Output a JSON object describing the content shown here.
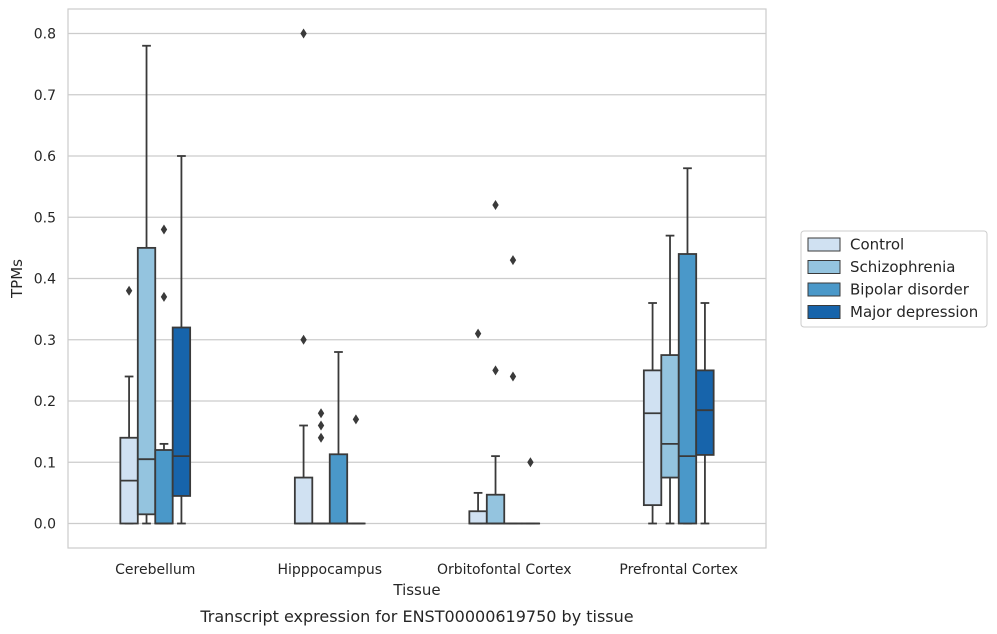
{
  "caption": "Transcript expression for ENST00000619750 by tissue",
  "chart_data": {
    "type": "box",
    "title": "",
    "xlabel": "Tissue",
    "ylabel": "TPMs",
    "ylim": [
      -0.04,
      0.84
    ],
    "yticks": [
      "0.0",
      "0.1",
      "0.2",
      "0.3",
      "0.4",
      "0.5",
      "0.6",
      "0.7",
      "0.8"
    ],
    "ytick_values": [
      0,
      0.1,
      0.2,
      0.3,
      0.4,
      0.5,
      0.6,
      0.7,
      0.8
    ],
    "grid": true,
    "legend_position": "right",
    "categories": [
      "Cerebellum",
      "Hipppocampus",
      "Orbitofontal Cortex",
      "Prefrontal Cortex"
    ],
    "series": [
      {
        "name": "Control",
        "color": "#d0e1f2",
        "boxes": [
          {
            "whislo": 0,
            "q1": 0,
            "med": 0.07,
            "q3": 0.14,
            "whishi": 0.24,
            "fliers": [
              0.38
            ]
          },
          {
            "whislo": 0,
            "q1": 0,
            "med": 0,
            "q3": 0.075,
            "whishi": 0.16,
            "fliers": [
              0.3,
              0.8
            ]
          },
          {
            "whislo": 0,
            "q1": 0,
            "med": 0,
            "q3": 0.02,
            "whishi": 0.05,
            "fliers": [
              0.31
            ]
          },
          {
            "whislo": 0,
            "q1": 0.03,
            "med": 0.18,
            "q3": 0.25,
            "whishi": 0.36,
            "fliers": []
          }
        ]
      },
      {
        "name": "Schizophrenia",
        "color": "#94c4df",
        "boxes": [
          {
            "whislo": 0,
            "q1": 0.015,
            "med": 0.105,
            "q3": 0.45,
            "whishi": 0.78,
            "fliers": []
          },
          {
            "whislo": 0,
            "q1": 0,
            "med": 0,
            "q3": 0,
            "whishi": 0,
            "fliers": [
              0.14,
              0.16,
              0.18
            ]
          },
          {
            "whislo": 0,
            "q1": 0,
            "med": 0,
            "q3": 0.047,
            "whishi": 0.11,
            "fliers": [
              0.25,
              0.52
            ]
          },
          {
            "whislo": 0,
            "q1": 0.075,
            "med": 0.13,
            "q3": 0.275,
            "whishi": 0.47,
            "fliers": []
          }
        ]
      },
      {
        "name": "Bipolar disorder",
        "color": "#4a98c9",
        "boxes": [
          {
            "whislo": 0,
            "q1": 0,
            "med": 0,
            "q3": 0.12,
            "whishi": 0.13,
            "fliers": [
              0.37,
              0.48
            ]
          },
          {
            "whislo": 0,
            "q1": 0,
            "med": 0,
            "q3": 0.113,
            "whishi": 0.28,
            "fliers": []
          },
          {
            "whislo": 0,
            "q1": 0,
            "med": 0,
            "q3": 0,
            "whishi": 0,
            "fliers": [
              0.24,
              0.43
            ]
          },
          {
            "whislo": 0,
            "q1": 0,
            "med": 0.11,
            "q3": 0.44,
            "whishi": 0.58,
            "fliers": []
          }
        ]
      },
      {
        "name": "Major depression",
        "color": "#1764ab",
        "boxes": [
          {
            "whislo": 0,
            "q1": 0.045,
            "med": 0.11,
            "q3": 0.32,
            "whishi": 0.6,
            "fliers": []
          },
          {
            "whislo": 0,
            "q1": 0,
            "med": 0,
            "q3": 0,
            "whishi": 0,
            "fliers": [
              0.17
            ]
          },
          {
            "whislo": 0,
            "q1": 0,
            "med": 0,
            "q3": 0,
            "whishi": 0,
            "fliers": [
              0.1
            ]
          },
          {
            "whislo": 0,
            "q1": 0.112,
            "med": 0.185,
            "q3": 0.25,
            "whishi": 0.36,
            "fliers": []
          }
        ]
      }
    ]
  }
}
